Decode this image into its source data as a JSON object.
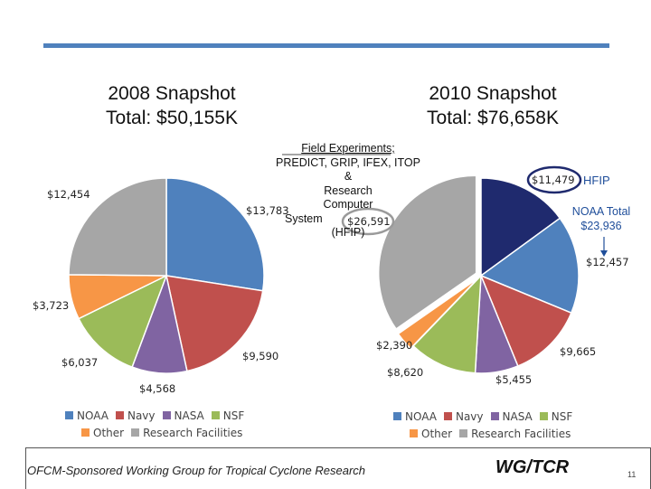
{
  "titles": {
    "left_line1": "2008 Snapshot",
    "left_line2": "Total: $50,155K",
    "right_line1": "2010 Snapshot",
    "right_line2": "Total: $76,658K"
  },
  "annotation": {
    "line1": "Field Experiments;",
    "line2": "PREDICT, GRIP, IFEX, ITOP",
    "line3": "&",
    "line4": "Research",
    "line5": "Computer",
    "line6": "System",
    "line7": "(HFIP)",
    "hfip": "HFIP",
    "noaa_total_line1": "NOAA Total",
    "noaa_total_line2": "$23,936"
  },
  "colors": {
    "noaa": "#4f81bd",
    "hfip": "#1f2a6e",
    "navy": "#c0504d",
    "nasa": "#8064a2",
    "nsf": "#9bbb59",
    "other": "#f79646",
    "research": "#a6a6a6",
    "highlight_hfip": "#1f2a6e",
    "highlight_research": "#9a9a9a"
  },
  "chart_data": [
    {
      "type": "pie",
      "title": "2008 Snapshot",
      "subtitle": "Total: $50,155K",
      "slices": [
        {
          "key": "noaa",
          "name": "NOAA",
          "value": 13783,
          "label": "$13,783"
        },
        {
          "key": "navy",
          "name": "Navy",
          "value": 9590,
          "label": "$9,590"
        },
        {
          "key": "nasa",
          "name": "NASA",
          "value": 4568,
          "label": "$4,568"
        },
        {
          "key": "nsf",
          "name": "NSF",
          "value": 6037,
          "label": "$6,037"
        },
        {
          "key": "other",
          "name": "Other",
          "value": 3723,
          "label": "$3,723"
        },
        {
          "key": "research",
          "name": "Research Facilities",
          "value": 12454,
          "label": "$12,454"
        }
      ],
      "legend": [
        "NOAA",
        "Navy",
        "NASA",
        "NSF",
        "Other",
        "Research Facilities"
      ],
      "legend_placement": "bottom"
    },
    {
      "type": "pie",
      "title": "2010 Snapshot",
      "subtitle": "Total: $76,658K",
      "slices": [
        {
          "key": "hfip",
          "name": "HFIP",
          "value": 11479,
          "label": "$11,479"
        },
        {
          "key": "noaa",
          "name": "NOAA",
          "value": 12457,
          "label": "$12,457"
        },
        {
          "key": "navy",
          "name": "Navy",
          "value": 9665,
          "label": "$9,665"
        },
        {
          "key": "nasa",
          "name": "NASA",
          "value": 5455,
          "label": "$5,455"
        },
        {
          "key": "nsf",
          "name": "NSF",
          "value": 8620,
          "label": "$8,620"
        },
        {
          "key": "other",
          "name": "Other",
          "value": 2390,
          "label": "$2,390"
        },
        {
          "key": "research",
          "name": "Research Facilities",
          "value": 26591,
          "label": "$26,591"
        }
      ],
      "legend": [
        "NOAA",
        "Navy",
        "NASA",
        "NSF",
        "Other",
        "Research Facilities"
      ],
      "legend_placement": "bottom"
    }
  ],
  "legend_labels": {
    "noaa": "NOAA",
    "navy": "Navy",
    "nasa": "NASA",
    "nsf": "NSF",
    "other": "Other",
    "research": "Research Facilities"
  },
  "footer": {
    "text": "OFCM-Sponsored Working Group for Tropical Cyclone Research",
    "logo": "WG/TCR",
    "page": "11"
  }
}
